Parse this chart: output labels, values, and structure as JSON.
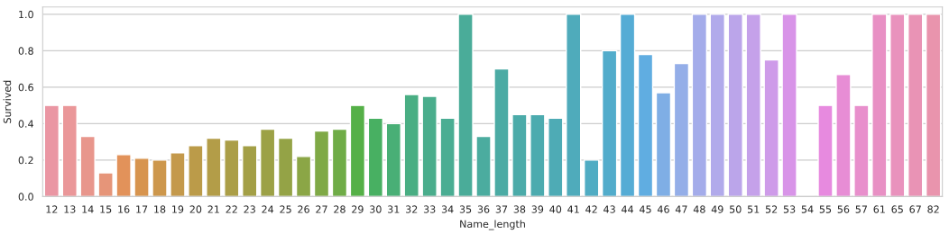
{
  "chart_data": {
    "type": "bar",
    "xlabel": "Name_length",
    "ylabel": "Survived",
    "categories": [
      "12",
      "13",
      "14",
      "15",
      "16",
      "17",
      "18",
      "19",
      "20",
      "21",
      "22",
      "23",
      "24",
      "25",
      "26",
      "27",
      "28",
      "29",
      "30",
      "31",
      "32",
      "33",
      "34",
      "35",
      "36",
      "37",
      "38",
      "39",
      "40",
      "41",
      "42",
      "43",
      "44",
      "45",
      "46",
      "47",
      "48",
      "49",
      "50",
      "51",
      "52",
      "53",
      "54",
      "55",
      "56",
      "57",
      "61",
      "65",
      "67",
      "82"
    ],
    "values": [
      0.5,
      0.5,
      0.33,
      0.13,
      0.23,
      0.21,
      0.2,
      0.24,
      0.28,
      0.32,
      0.31,
      0.28,
      0.37,
      0.32,
      0.22,
      0.36,
      0.37,
      0.5,
      0.43,
      0.4,
      0.56,
      0.55,
      0.43,
      1.0,
      0.33,
      0.7,
      0.45,
      0.45,
      0.43,
      1.0,
      0.2,
      0.8,
      1.0,
      0.78,
      0.57,
      0.73,
      1.0,
      1.0,
      1.0,
      1.0,
      0.75,
      1.0,
      0.0,
      0.5,
      0.67,
      0.5,
      1.0,
      1.0,
      1.0,
      1.0
    ],
    "colors": [
      "#ea96a3",
      "#ea9799",
      "#e8968c",
      "#e69579",
      "#e2925a",
      "#d7944e",
      "#cd974c",
      "#c4994b",
      "#bb9b49",
      "#b39d48",
      "#ab9e47",
      "#a39f46",
      "#9ca146",
      "#94a346",
      "#8ba646",
      "#7fa946",
      "#6fac47",
      "#55b047",
      "#48b062",
      "#49af76",
      "#49ae83",
      "#4aad8c",
      "#4aad93",
      "#4aac99",
      "#4bac9f",
      "#4baba4",
      "#4baba9",
      "#4cabaf",
      "#4eabb5",
      "#4fabbb",
      "#50acc3",
      "#52accb",
      "#55acd5",
      "#60ade1",
      "#7faee5",
      "#94aee8",
      "#a4acea",
      "#b1aaeb",
      "#bba5ea",
      "#c5a1ea",
      "#ce9be9",
      "#d894e8",
      null,
      "#e78adf",
      "#e78dd5",
      "#e88fcc",
      "#e890c4",
      "#e992bd",
      "#e993b5",
      "#e994ad"
    ],
    "ylim": [
      0,
      1.04
    ],
    "yticks": [
      {
        "value": 0,
        "label": "0.0"
      },
      {
        "value": 0.2,
        "label": "0.2"
      },
      {
        "value": 0.4,
        "label": "0.4"
      },
      {
        "value": 0.6,
        "label": "0.6"
      },
      {
        "value": 0.8,
        "label": "0.8"
      },
      {
        "value": 1.0,
        "label": "1.0"
      }
    ],
    "grid": "y"
  }
}
